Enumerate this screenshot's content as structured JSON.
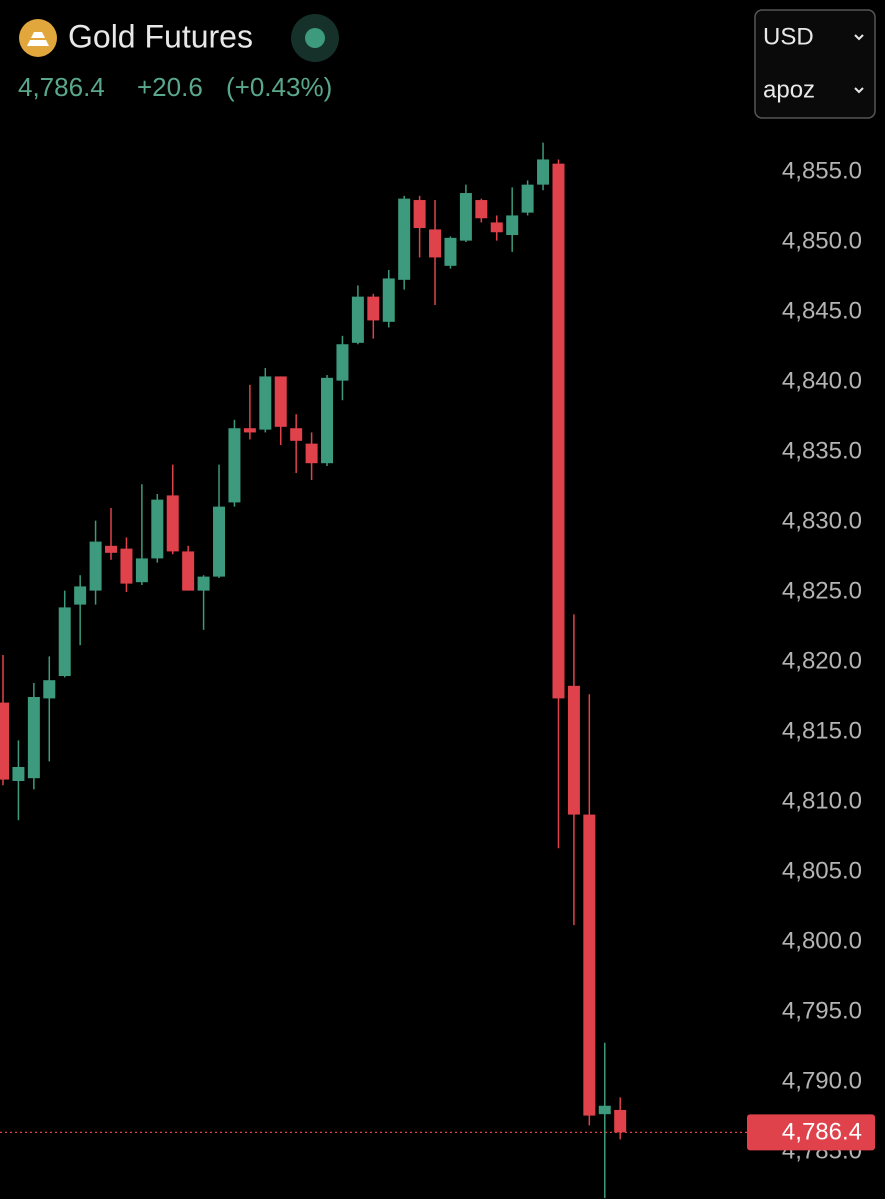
{
  "header": {
    "title": "Gold Futures",
    "price": "4,786.4",
    "change": "+20.6",
    "change_percent": "(+0.43%)",
    "currency": "USD",
    "unit": "apoz"
  },
  "chart_data": {
    "type": "candlestick",
    "up_color": "#3d9a7c",
    "down_color": "#e0424b",
    "ylim": [
      4781.64,
      4867.29
    ],
    "yticks": [
      {
        "value": 4785,
        "label": "4,785.0"
      },
      {
        "value": 4790,
        "label": "4,790.0"
      },
      {
        "value": 4795,
        "label": "4,795.0"
      },
      {
        "value": 4800,
        "label": "4,800.0"
      },
      {
        "value": 4805,
        "label": "4,805.0"
      },
      {
        "value": 4810,
        "label": "4,810.0"
      },
      {
        "value": 4815,
        "label": "4,815.0"
      },
      {
        "value": 4820,
        "label": "4,820.0"
      },
      {
        "value": 4825,
        "label": "4,825.0"
      },
      {
        "value": 4830,
        "label": "4,830.0"
      },
      {
        "value": 4835,
        "label": "4,835.0"
      },
      {
        "value": 4840,
        "label": "4,840.0"
      },
      {
        "value": 4845,
        "label": "4,845.0"
      },
      {
        "value": 4850,
        "label": "4,850.0"
      },
      {
        "value": 4855,
        "label": "4,855.0"
      }
    ],
    "last_price": {
      "value": 4786.4,
      "label": "4,786.4"
    },
    "open": [
      4817.1,
      4811.5,
      4811.7,
      4817.4,
      4819.0,
      4824.1,
      4825.1,
      4828.3,
      4828.1,
      4825.7,
      4827.4,
      4831.9,
      4827.9,
      4825.1,
      4826.1,
      4831.4,
      4836.7,
      4836.6,
      4840.4,
      4836.7,
      4835.6,
      4834.2,
      4840.1,
      4842.8,
      4846.1,
      4844.3,
      4847.3,
      4853.0,
      4850.9,
      4848.3,
      4850.1,
      4853.0,
      4851.4,
      4850.5,
      4852.1,
      4854.1,
      4855.6,
      4818.3,
      4809.1,
      4787.7,
      4788.0
    ],
    "high": [
      4820.5,
      4814.4,
      4818.5,
      4820.4,
      4825.1,
      4826.2,
      4830.1,
      4831.0,
      4828.9,
      4832.7,
      4832.0,
      4834.1,
      4828.3,
      4826.2,
      4834.1,
      4837.3,
      4839.8,
      4841.0,
      4840.4,
      4837.7,
      4836.4,
      4840.5,
      4843.3,
      4846.9,
      4846.3,
      4848.0,
      4853.3,
      4853.3,
      4853.0,
      4850.4,
      4854.1,
      4853.1,
      4851.9,
      4853.9,
      4854.4,
      4857.1,
      4855.9,
      4823.4,
      4817.7,
      4792.8,
      4788.9
    ],
    "low": [
      4811.2,
      4808.7,
      4810.9,
      4812.9,
      4818.9,
      4821.2,
      4824.1,
      4827.3,
      4825.0,
      4825.5,
      4827.1,
      4827.7,
      4825.1,
      4822.3,
      4826.0,
      4831.1,
      4835.9,
      4836.4,
      4835.5,
      4833.5,
      4833.0,
      4834.0,
      4838.7,
      4842.7,
      4843.1,
      4843.9,
      4846.6,
      4848.9,
      4845.5,
      4848.1,
      4850.0,
      4851.4,
      4850.1,
      4849.3,
      4851.9,
      4853.7,
      4806.7,
      4801.2,
      4786.9,
      4781.7,
      4785.9
    ],
    "close": [
      4811.6,
      4812.5,
      4817.5,
      4818.7,
      4823.9,
      4825.4,
      4828.6,
      4827.8,
      4825.6,
      4827.4,
      4831.6,
      4827.9,
      4825.1,
      4826.1,
      4831.1,
      4836.7,
      4836.4,
      4840.4,
      4836.8,
      4835.8,
      4834.2,
      4840.3,
      4842.7,
      4846.1,
      4844.4,
      4847.4,
      4853.1,
      4851.0,
      4848.9,
      4850.3,
      4853.5,
      4851.7,
      4850.7,
      4851.9,
      4854.1,
      4855.9,
      4817.4,
      4809.1,
      4787.6,
      4788.3,
      4786.4
    ]
  }
}
